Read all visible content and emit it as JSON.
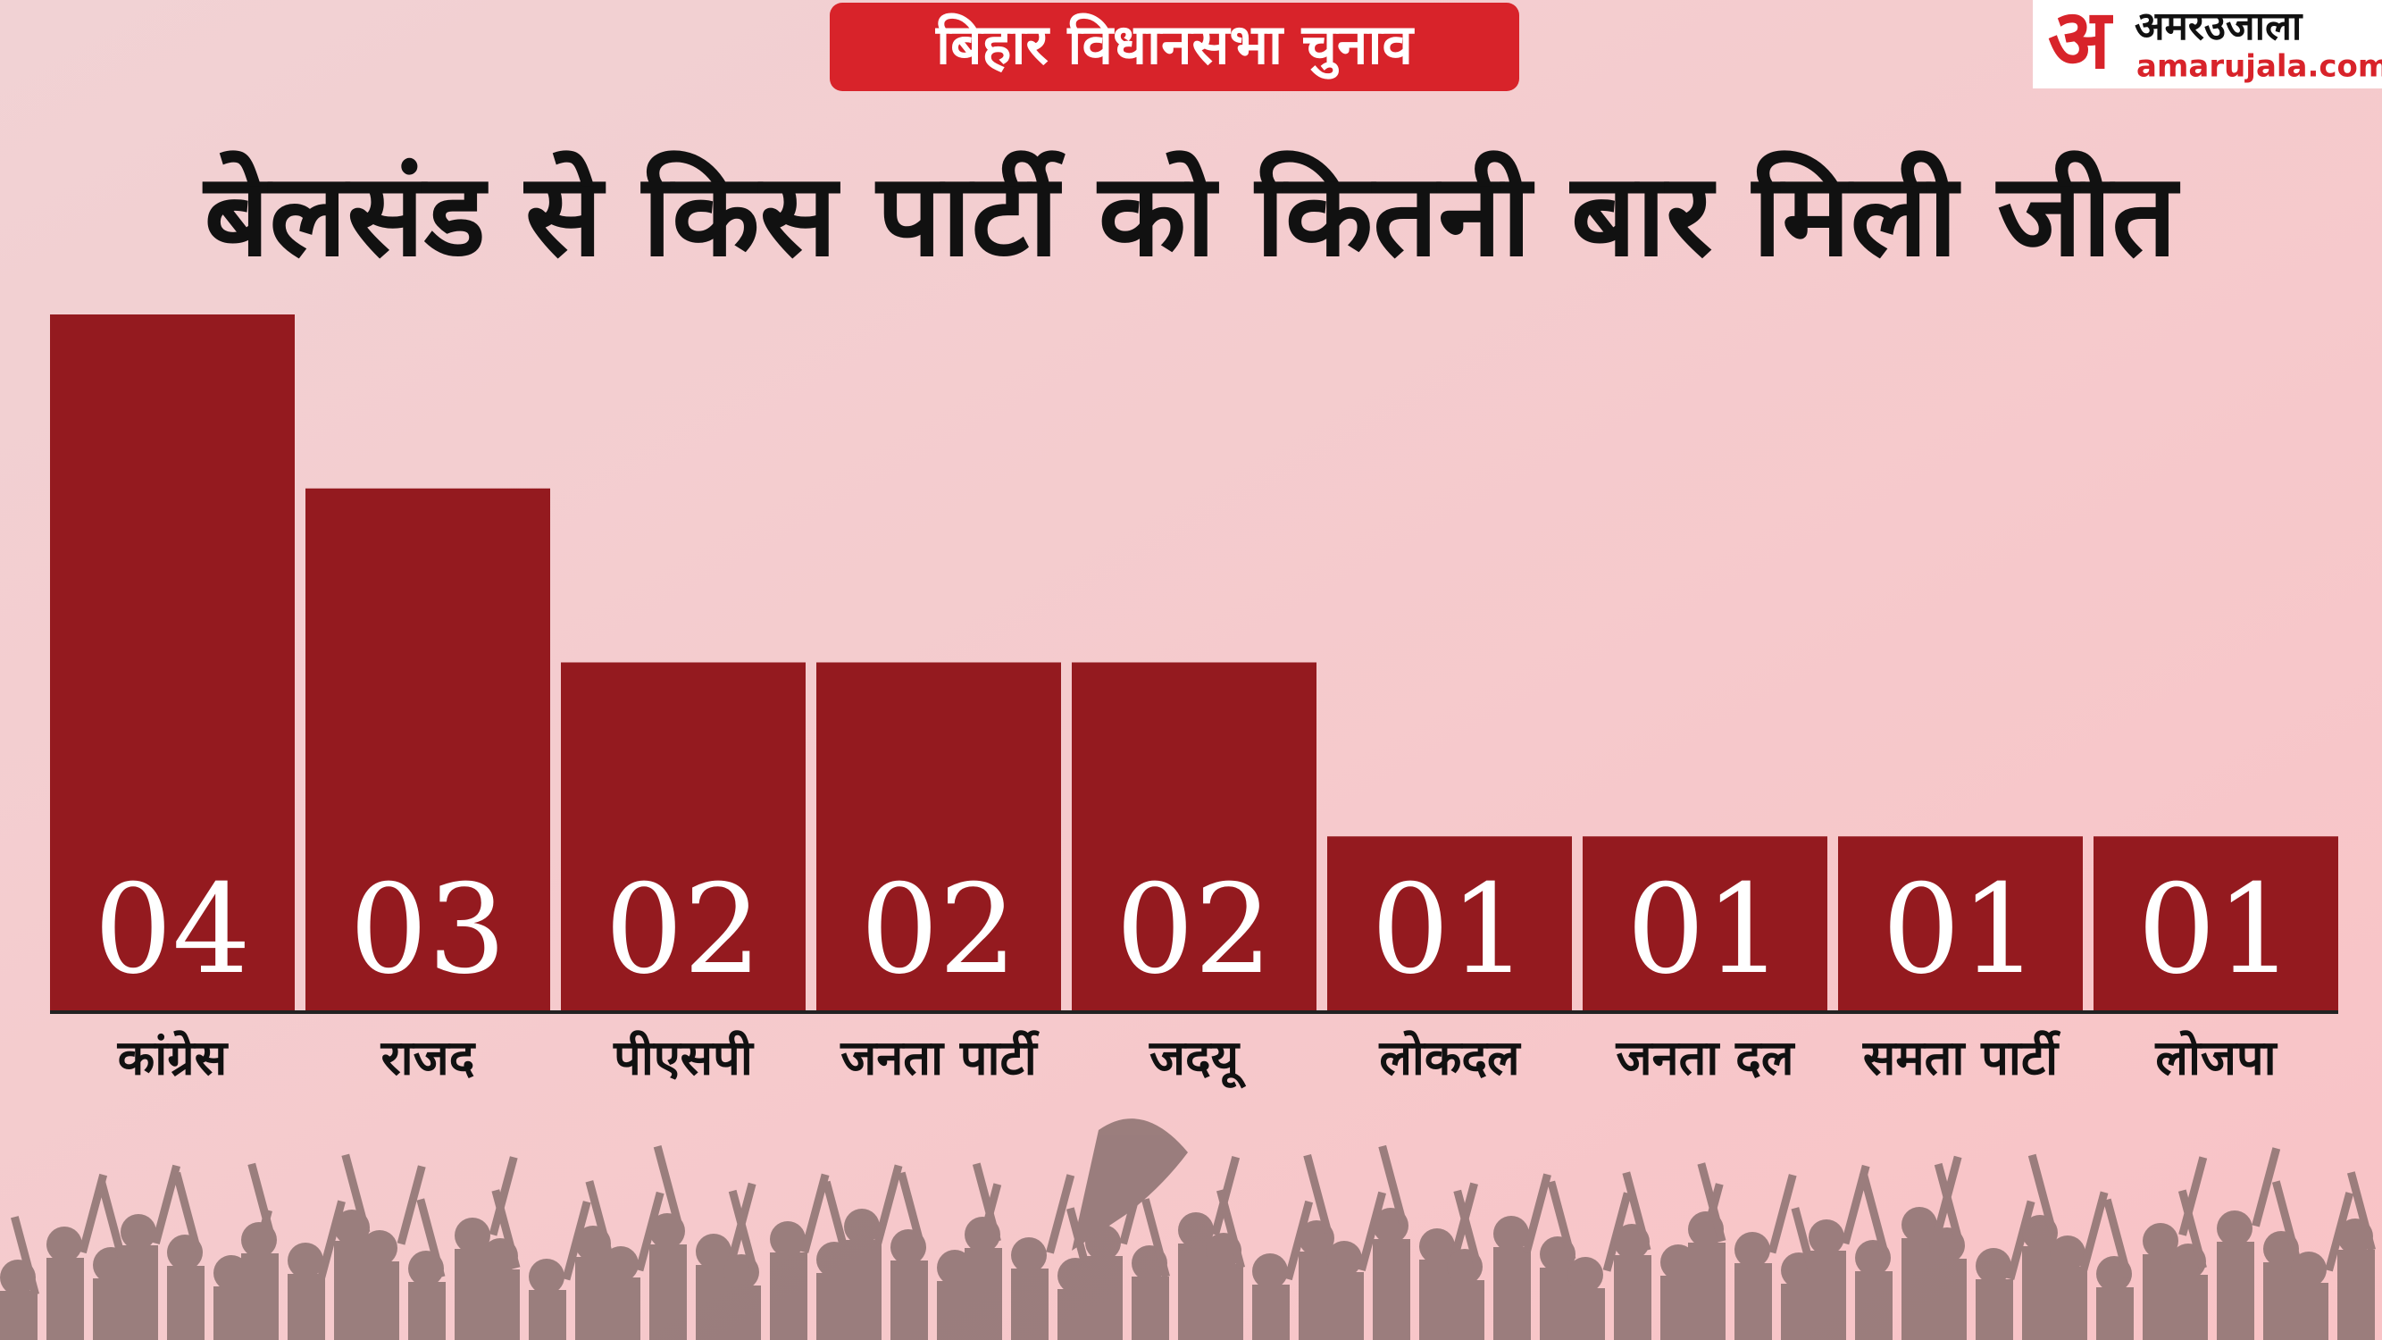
{
  "chart_data": {
    "type": "bar",
    "badge": "बिहार विधानसभा चुनाव",
    "title": "बेलसंड से किस पार्टी को कितनी बार मिली जीत",
    "logo": {
      "mark": "अ",
      "name": "अमरउजाला",
      "site": "amarujala.com"
    },
    "categories": [
      "कांग्रेस",
      "राजद",
      "पीएसपी",
      "जनता पार्टी",
      "जदयू",
      "लोकदल",
      "जनता दल",
      "समता पार्टी",
      "लोजपा"
    ],
    "values": [
      4,
      3,
      2,
      2,
      2,
      1,
      1,
      1,
      1
    ],
    "value_labels": [
      "04",
      "03",
      "02",
      "02",
      "02",
      "01",
      "01",
      "01",
      "01"
    ],
    "color": "#941a1f"
  }
}
